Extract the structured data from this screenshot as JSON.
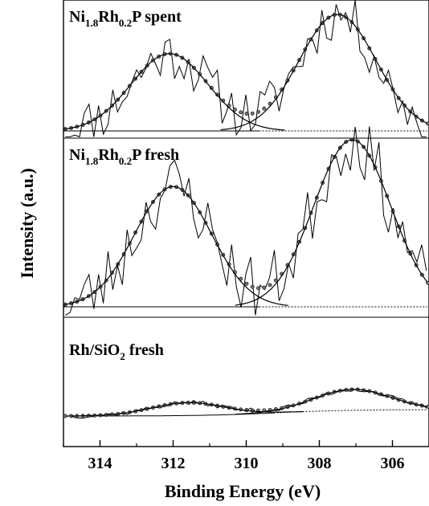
{
  "chart_data": {
    "type": "line",
    "xlabel": "Binding Energy (eV)",
    "ylabel": "Intensity (a.u.)",
    "x_axis_reversed": true,
    "xlim": [
      315,
      305
    ],
    "xticks": [
      "314",
      "312",
      "310",
      "308",
      "306"
    ],
    "xtick_values": [
      314,
      312,
      310,
      308,
      306
    ],
    "y_ticks_shown": false,
    "panels": [
      {
        "label": {
          "base": "Ni",
          "sub1": "1.8",
          "mid": "Rh",
          "sub2": "0.2",
          "tail": "P spent"
        },
        "background": {
          "start": 0.0,
          "end": 0.0,
          "mid": 309.6,
          "width": 0.4
        },
        "peaks": [
          {
            "center": 312.1,
            "height": 0.65,
            "sigma": 1.05
          },
          {
            "center": 307.5,
            "height": 0.98,
            "sigma": 1.05
          }
        ],
        "noise_amplitude": 0.22,
        "seed": 11
      },
      {
        "label": {
          "base": "Ni",
          "sub1": "1.8",
          "mid": "Rh",
          "sub2": "0.2",
          "tail": "P fresh"
        },
        "background": {
          "start": 0.0,
          "end": 0.0,
          "mid": 309.6,
          "width": 0.4
        },
        "peaks": [
          {
            "center": 312.0,
            "height": 0.72,
            "sigma": 1.05
          },
          {
            "center": 307.1,
            "height": 1.0,
            "sigma": 1.05
          }
        ],
        "noise_amplitude": 0.2,
        "seed": 23
      },
      {
        "label": {
          "base": "Rh/SiO",
          "sub1": "2",
          "mid": "",
          "sub2": "",
          "tail": " fresh"
        },
        "background": {
          "start": 0.08,
          "end": -0.08,
          "mid": 309.2,
          "width": 1.0
        },
        "peaks": [
          {
            "center": 311.6,
            "height": 0.32,
            "sigma": 1.0
          },
          {
            "center": 307.1,
            "height": 0.52,
            "sigma": 1.05
          }
        ],
        "noise_amplitude": 0.06,
        "seed": 37
      }
    ],
    "series_styles": [
      "raw spectrum (thin solid line)",
      "fitted envelope (dotted circles)",
      "background (solid / dotted tail)"
    ]
  }
}
